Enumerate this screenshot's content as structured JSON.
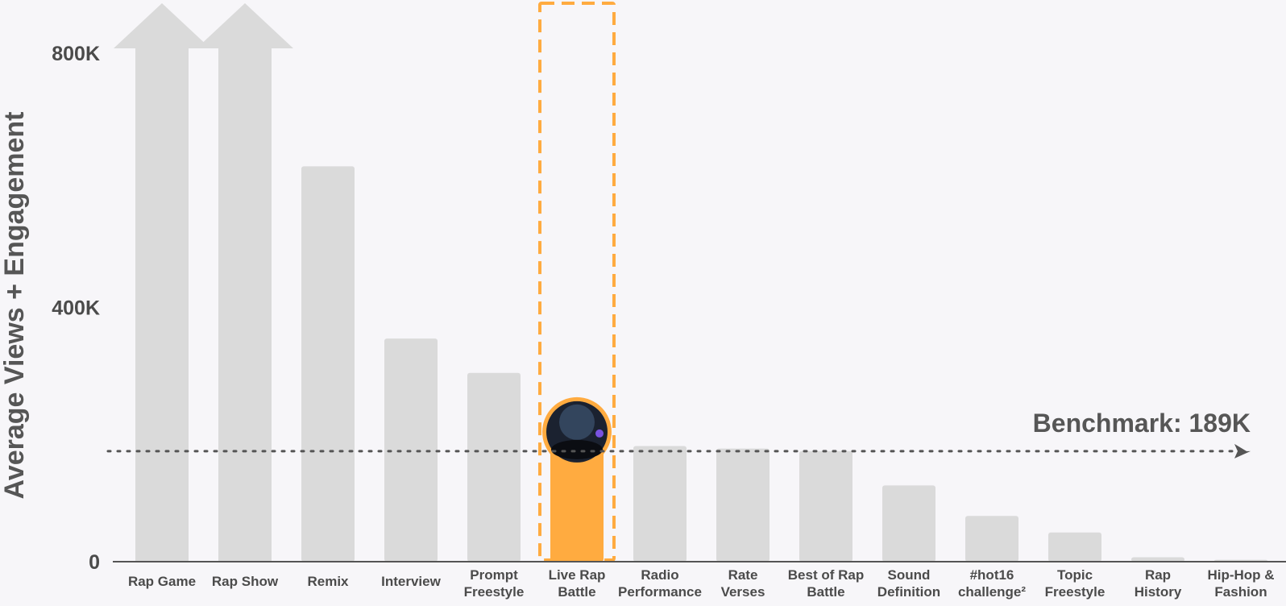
{
  "chart_data": {
    "type": "bar",
    "title": "",
    "ylabel": "Average Views + Engagement",
    "xlabel": "",
    "ylim": [
      0,
      800000
    ],
    "yticks": [
      {
        "value": 0,
        "label": "0"
      },
      {
        "value": 400000,
        "label": "400K"
      },
      {
        "value": 800000,
        "label": "800K"
      }
    ],
    "categories": [
      [
        "Rap Game"
      ],
      [
        "Rap Show"
      ],
      [
        "Remix"
      ],
      [
        "Interview"
      ],
      [
        "Prompt",
        "Freestyle"
      ],
      [
        "Live Rap",
        "Battle"
      ],
      [
        "Radio",
        "Performance"
      ],
      [
        "Rate",
        "Verses"
      ],
      [
        "Best of Rap",
        "Battle"
      ],
      [
        "Sound",
        "Definition"
      ],
      [
        "#hot16",
        "challenge²"
      ],
      [
        "Topic",
        "Freestyle"
      ],
      [
        "Rap",
        "History"
      ],
      [
        "Hip-Hop &",
        "Fashion"
      ]
    ],
    "values": [
      800000,
      800000,
      622000,
      351000,
      297000,
      189000,
      182000,
      178000,
      174000,
      120000,
      72000,
      46000,
      7000,
      3000
    ],
    "exceeds_axis": [
      true,
      true,
      false,
      false,
      false,
      false,
      false,
      false,
      false,
      false,
      false,
      false,
      false,
      false
    ],
    "highlight_index": 5,
    "benchmark": {
      "value": 189000,
      "label": "Benchmark: 189K"
    },
    "grid": false,
    "legend": "none",
    "colors": {
      "bar": "#dadada",
      "highlight": "#ffab40",
      "benchmark_line": "#555555",
      "text": "#4b4b4b",
      "axis": "#555555"
    }
  }
}
